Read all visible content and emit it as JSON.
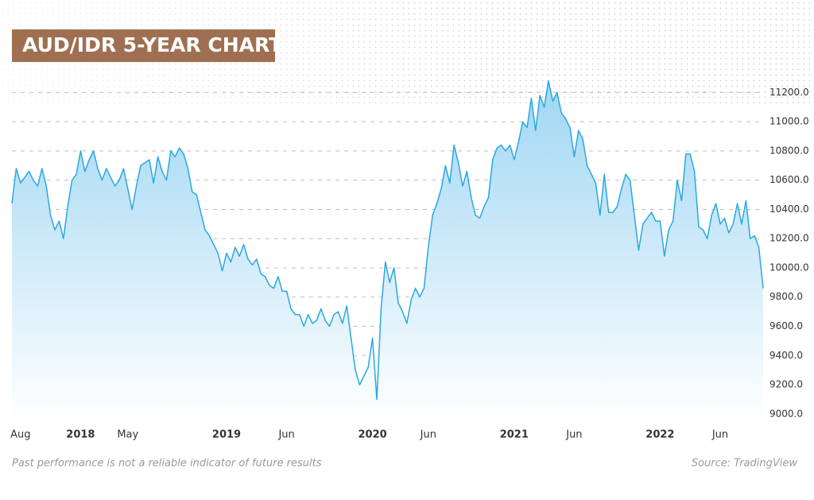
{
  "chart_data": {
    "type": "area",
    "title": "AUD/IDR 5-YEAR CHART",
    "footnote": "Past performance is not a reliable indicator of future results",
    "source": "Source: TradingView",
    "categories": [
      null,
      null,
      "Aug",
      null,
      null,
      null,
      null,
      null,
      null,
      null,
      null,
      null,
      null,
      null,
      null,
      null,
      "2018",
      null,
      null,
      null,
      null,
      null,
      null,
      null,
      null,
      null,
      null,
      "May",
      null,
      null,
      null,
      null,
      null,
      null,
      null,
      null,
      null,
      null,
      null,
      null,
      null,
      null,
      null,
      null,
      null,
      null,
      null,
      null,
      null,
      null,
      "2019",
      null,
      null,
      null,
      null,
      null,
      null,
      null,
      null,
      null,
      null,
      null,
      null,
      null,
      "Jun",
      null,
      null,
      null,
      null,
      null,
      null,
      null,
      null,
      null,
      null,
      null,
      null,
      null,
      null,
      null,
      null,
      null,
      null,
      null,
      "2020",
      null,
      null,
      null,
      null,
      null,
      null,
      null,
      null,
      null,
      null,
      null,
      null,
      "Jun",
      null,
      null,
      null,
      null,
      null,
      null,
      null,
      null,
      null,
      null,
      null,
      null,
      null,
      null,
      null,
      null,
      null,
      null,
      null,
      "2021",
      null,
      null,
      null,
      null,
      null,
      null,
      null,
      null,
      null,
      null,
      null,
      null,
      null,
      "Jun",
      null,
      null,
      null,
      null,
      null,
      null,
      null,
      null,
      null,
      null,
      null,
      null,
      null,
      null,
      null,
      null,
      null,
      null,
      null,
      "2022",
      null,
      null,
      null,
      null,
      null,
      null,
      null,
      null,
      null,
      null,
      null,
      null,
      null,
      "Jun",
      null,
      null,
      null,
      null,
      null,
      null,
      null,
      null,
      null,
      null
    ],
    "series": [
      {
        "name": "AUD/IDR",
        "color": "#29a8e0",
        "values": [
          10440,
          10680,
          10580,
          10620,
          10660,
          10600,
          10560,
          10680,
          10560,
          10360,
          10260,
          10320,
          10200,
          10420,
          10600,
          10640,
          10800,
          10660,
          10740,
          10800,
          10680,
          10600,
          10680,
          10620,
          10560,
          10600,
          10680,
          10540,
          10400,
          10560,
          10700,
          10720,
          10740,
          10580,
          10760,
          10660,
          10600,
          10800,
          10760,
          10820,
          10780,
          10680,
          10520,
          10500,
          10380,
          10260,
          10220,
          10160,
          10100,
          9980,
          10100,
          10040,
          10140,
          10080,
          10160,
          10060,
          10020,
          10060,
          9960,
          9940,
          9880,
          9860,
          9940,
          9840,
          9840,
          9720,
          9680,
          9680,
          9600,
          9680,
          9620,
          9640,
          9720,
          9640,
          9600,
          9680,
          9700,
          9620,
          9740,
          9520,
          9300,
          9200,
          9260,
          9320,
          9520,
          9100,
          9720,
          10040,
          9900,
          10000,
          9760,
          9700,
          9620,
          9780,
          9860,
          9800,
          9860,
          10140,
          10360,
          10440,
          10540,
          10700,
          10580,
          10840,
          10720,
          10560,
          10660,
          10480,
          10360,
          10340,
          10420,
          10480,
          10740,
          10820,
          10840,
          10800,
          10840,
          10740,
          10860,
          11000,
          10960,
          11160,
          10940,
          11180,
          11100,
          11280,
          11140,
          11200,
          11060,
          11020,
          10960,
          10760,
          10940,
          10880,
          10700,
          10640,
          10580,
          10360,
          10640,
          10380,
          10380,
          10420,
          10540,
          10640,
          10600,
          10360,
          10120,
          10300,
          10340,
          10380,
          10320,
          10320,
          10080,
          10260,
          10320,
          10600,
          10460,
          10780,
          10780,
          10660,
          10280,
          10260,
          10200,
          10360,
          10440,
          10300,
          10340,
          10240,
          10300,
          10440,
          10300,
          10460,
          10200,
          10220,
          10140,
          9860
        ]
      }
    ],
    "ylim": [
      8950,
      11300
    ],
    "yticks": [
      {
        "value": 9000,
        "label": "9000.0"
      },
      {
        "value": 9200,
        "label": "9200.0"
      },
      {
        "value": 9400,
        "label": "9400.0"
      },
      {
        "value": 9600,
        "label": "9600.0"
      },
      {
        "value": 9800,
        "label": "9800.0"
      },
      {
        "value": 10000,
        "label": "10000.0"
      },
      {
        "value": 10200,
        "label": "10200.0"
      },
      {
        "value": 10400,
        "label": "10400.0"
      },
      {
        "value": 10600,
        "label": "10600.0"
      },
      {
        "value": 10800,
        "label": "10800.0"
      },
      {
        "value": 11000,
        "label": "11000.0"
      },
      {
        "value": 11200,
        "label": "11200.0"
      }
    ],
    "grid": true
  }
}
